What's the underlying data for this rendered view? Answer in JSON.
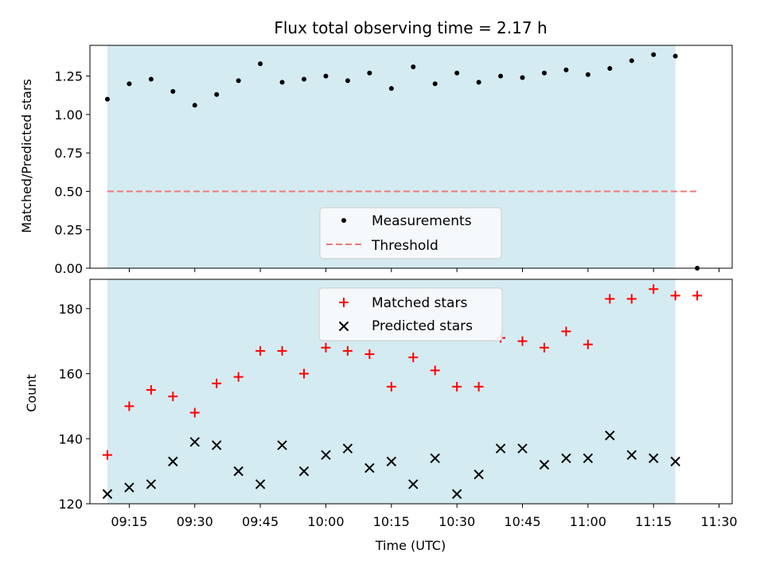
{
  "chart_data": [
    {
      "type": "scatter",
      "title": "Flux total observing time = 2.17 h",
      "xlabel": "",
      "ylabel": "Matched/Predicted stars",
      "ylim": [
        0,
        1.45
      ],
      "yticks": [
        "0.00",
        "0.25",
        "0.50",
        "0.75",
        "1.00",
        "1.25"
      ],
      "ytick_values": [
        0,
        0.25,
        0.5,
        0.75,
        1.0,
        1.25
      ],
      "x_range_minutes": [
        "09:06",
        "11:33"
      ],
      "shaded_span": [
        "09:10",
        "11:20"
      ],
      "shade_color": "#d4ebf1",
      "legend": {
        "position": "lower-center",
        "entries": [
          {
            "label": "Measurements",
            "marker": "dot",
            "color": "#000000"
          },
          {
            "label": "Threshold",
            "marker": "dashed-line",
            "color": "#f07a7a"
          }
        ]
      },
      "threshold": {
        "value": 0.5,
        "x": [
          "09:10",
          "11:25"
        ]
      },
      "series": [
        {
          "name": "Measurements",
          "x": [
            "09:10",
            "09:15",
            "09:20",
            "09:25",
            "09:30",
            "09:35",
            "09:40",
            "09:45",
            "09:50",
            "09:55",
            "10:00",
            "10:05",
            "10:10",
            "10:15",
            "10:20",
            "10:25",
            "10:30",
            "10:35",
            "10:40",
            "10:45",
            "10:50",
            "10:55",
            "11:00",
            "11:05",
            "11:10",
            "11:15",
            "11:20",
            "11:25"
          ],
          "y": [
            1.1,
            1.2,
            1.23,
            1.15,
            1.06,
            1.13,
            1.22,
            1.33,
            1.21,
            1.23,
            1.25,
            1.22,
            1.27,
            1.17,
            1.31,
            1.2,
            1.27,
            1.21,
            1.25,
            1.24,
            1.27,
            1.29,
            1.26,
            1.3,
            1.35,
            1.39,
            1.38,
            0.0
          ]
        }
      ]
    },
    {
      "type": "scatter",
      "title": "",
      "xlabel": "Time (UTC)",
      "ylabel": "Count",
      "ylim": [
        120,
        189
      ],
      "yticks": [
        "120",
        "140",
        "160",
        "180"
      ],
      "ytick_values": [
        120,
        140,
        160,
        180
      ],
      "xticks": [
        "09:15",
        "09:30",
        "09:45",
        "10:00",
        "10:15",
        "10:30",
        "10:45",
        "11:00",
        "11:15",
        "11:30"
      ],
      "legend": {
        "position": "upper-center",
        "entries": [
          {
            "label": "Matched stars",
            "marker": "plus",
            "color": "#ff0000"
          },
          {
            "label": "Predicted stars",
            "marker": "x",
            "color": "#000000"
          }
        ]
      },
      "series": [
        {
          "name": "Matched stars",
          "x": [
            "09:10",
            "09:15",
            "09:20",
            "09:25",
            "09:30",
            "09:35",
            "09:40",
            "09:45",
            "09:50",
            "09:55",
            "10:00",
            "10:05",
            "10:10",
            "10:15",
            "10:20",
            "10:25",
            "10:30",
            "10:35",
            "10:40",
            "10:45",
            "10:50",
            "10:55",
            "11:00",
            "11:05",
            "11:10",
            "11:15",
            "11:20",
            "11:25"
          ],
          "y": [
            135,
            150,
            155,
            153,
            148,
            157,
            159,
            167,
            167,
            160,
            168,
            167,
            166,
            156,
            165,
            161,
            156,
            156,
            171,
            170,
            168,
            173,
            169,
            183,
            183,
            186,
            184,
            184
          ]
        },
        {
          "name": "Predicted stars",
          "x": [
            "09:10",
            "09:15",
            "09:20",
            "09:25",
            "09:30",
            "09:35",
            "09:40",
            "09:45",
            "09:50",
            "09:55",
            "10:00",
            "10:05",
            "10:10",
            "10:15",
            "10:20",
            "10:25",
            "10:30",
            "10:35",
            "10:40",
            "10:45",
            "10:50",
            "10:55",
            "11:00",
            "11:05",
            "11:10",
            "11:15",
            "11:20"
          ],
          "y": [
            123,
            125,
            126,
            133,
            139,
            138,
            130,
            126,
            138,
            130,
            135,
            137,
            131,
            133,
            126,
            134,
            123,
            129,
            137,
            137,
            132,
            134,
            134,
            141,
            135,
            134,
            133
          ]
        }
      ]
    }
  ]
}
